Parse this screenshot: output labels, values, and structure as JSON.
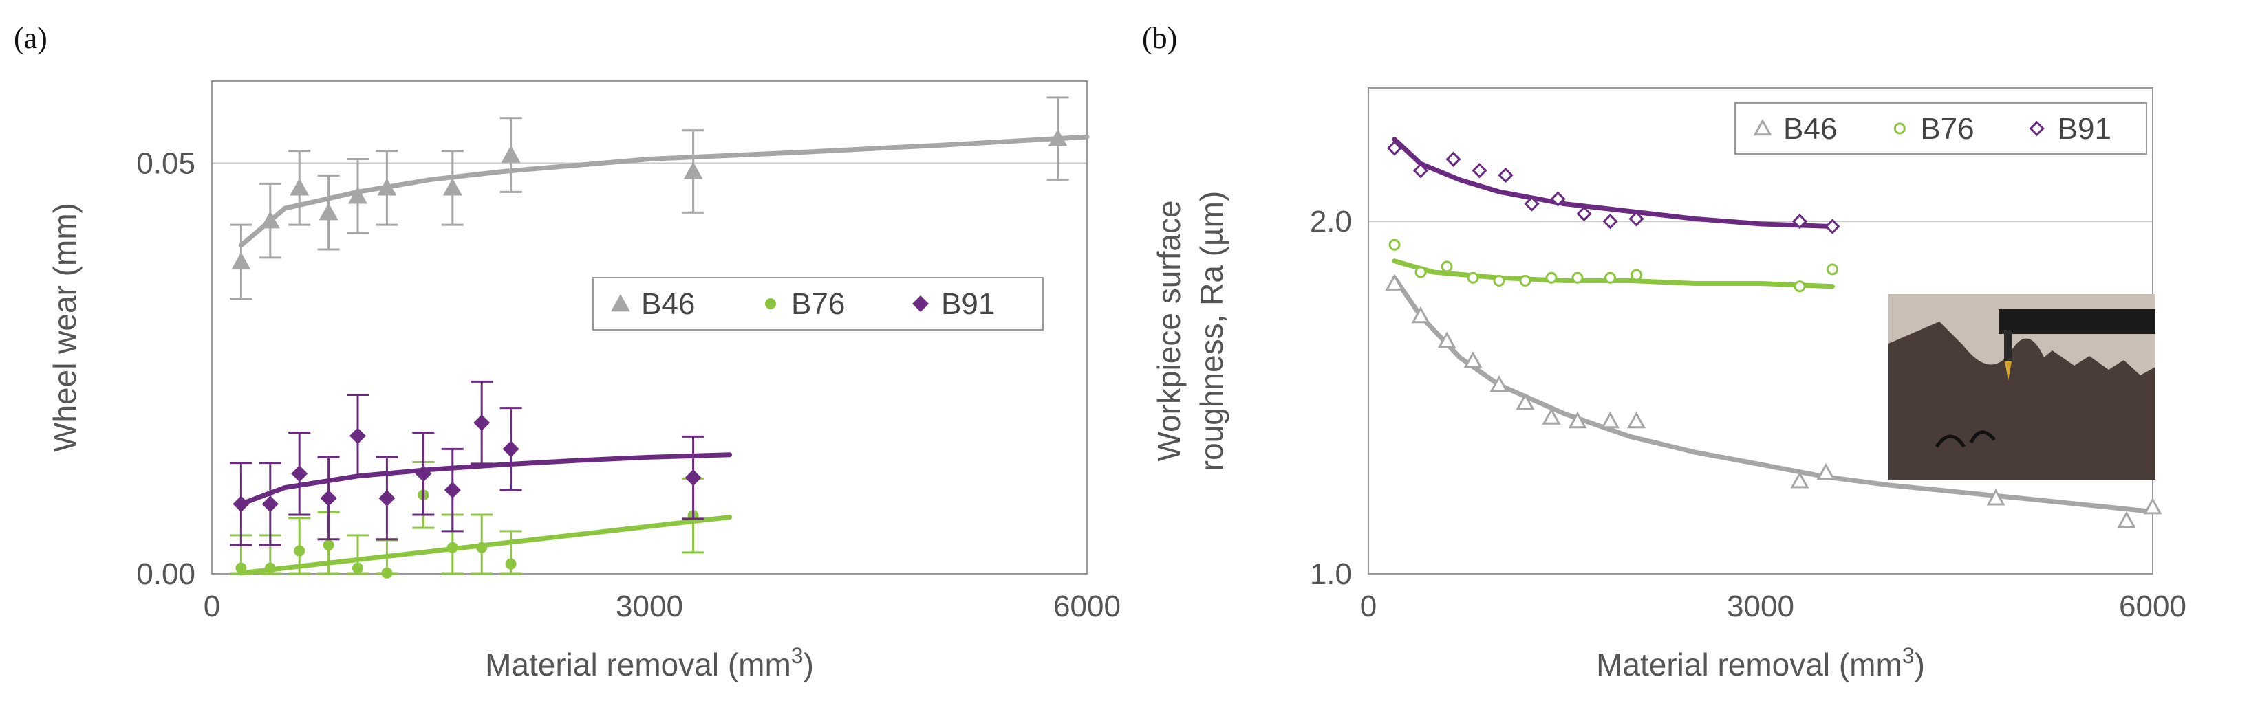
{
  "panels": {
    "a": {
      "label": "(a)"
    },
    "b": {
      "label": "(b)"
    }
  },
  "colors": {
    "B46": "#a6a6a6",
    "B76": "#8cc63f",
    "B91": "#6b2a82"
  },
  "chart_data": [
    {
      "id": "a",
      "type": "scatter",
      "title": "",
      "xlabel": "Material removal (mm",
      "xlabel_sup": "3",
      "xlabel_end": ")",
      "ylabel": "Wheel wear (mm)",
      "xlim": [
        0,
        6000
      ],
      "ylim": [
        0,
        0.06
      ],
      "xticks": [
        0,
        3000,
        6000
      ],
      "xtick_labels": [
        "0",
        "3000",
        "6000"
      ],
      "yticks": [
        0,
        0.05
      ],
      "ytick_labels": [
        "0.00",
        "0.05"
      ],
      "grid_y": [
        0.05
      ],
      "legend": {
        "placement": "center-right",
        "entries": [
          "B46",
          "B76",
          "B91"
        ]
      },
      "series": [
        {
          "name": "B46",
          "marker": "triangle-filled",
          "x": [
            200,
            400,
            600,
            800,
            1000,
            1200,
            1650,
            2050,
            3300,
            5800
          ],
          "y": [
            0.038,
            0.043,
            0.047,
            0.044,
            0.046,
            0.047,
            0.047,
            0.051,
            0.049,
            0.053
          ],
          "err": [
            0.0045,
            0.0045,
            0.0045,
            0.0045,
            0.0045,
            0.0045,
            0.0045,
            0.0045,
            0.005,
            0.005
          ],
          "fit": {
            "x": [
              200,
              500,
              1000,
              1500,
              2000,
              3000,
              4000,
              5000,
              6000
            ],
            "y": [
              0.04,
              0.0445,
              0.0465,
              0.048,
              0.049,
              0.0505,
              0.0513,
              0.0522,
              0.0532
            ]
          }
        },
        {
          "name": "B76",
          "marker": "circle-filled",
          "x": [
            200,
            400,
            600,
            800,
            1000,
            1200,
            1450,
            1650,
            1850,
            2050,
            3300
          ],
          "y": [
            0.0007,
            0.0007,
            0.0028,
            0.0035,
            0.0007,
            0.0001,
            0.0096,
            0.0032,
            0.0032,
            0.0012,
            0.0071
          ],
          "err": [
            0.004,
            0.004,
            0.004,
            0.004,
            0.004,
            0.004,
            0.004,
            0.004,
            0.004,
            0.004,
            0.0045
          ],
          "fit": {
            "x": [
              200,
              3550
            ],
            "y": [
              0.0001,
              0.0069
            ]
          }
        },
        {
          "name": "B91",
          "marker": "diamond-filled",
          "x": [
            200,
            400,
            600,
            800,
            1000,
            1200,
            1450,
            1650,
            1850,
            2050,
            3300
          ],
          "y": [
            0.0085,
            0.0085,
            0.0122,
            0.0092,
            0.0168,
            0.0092,
            0.0122,
            0.0102,
            0.0184,
            0.0152,
            0.0117
          ],
          "err": [
            0.005,
            0.005,
            0.005,
            0.005,
            0.005,
            0.005,
            0.005,
            0.005,
            0.005,
            0.005,
            0.005
          ],
          "fit": {
            "x": [
              200,
              500,
              1000,
              1500,
              2000,
              2500,
              3000,
              3550
            ],
            "y": [
              0.0085,
              0.0105,
              0.0119,
              0.0127,
              0.0133,
              0.0138,
              0.0142,
              0.0145
            ]
          }
        }
      ]
    },
    {
      "id": "b",
      "type": "scatter",
      "title": "",
      "xlabel": "Material removal (mm",
      "xlabel_sup": "3",
      "xlabel_end": ")",
      "ylabel_line1": "Workpiece surface",
      "ylabel_line2": "roughness, Ra (µm)",
      "yscale": "log",
      "xlim": [
        0,
        6000
      ],
      "ylim": [
        1.0,
        2.6
      ],
      "xticks": [
        0,
        3000,
        6000
      ],
      "xtick_labels": [
        "0",
        "3000",
        "6000"
      ],
      "yticks": [
        1.0,
        2.0
      ],
      "ytick_labels": [
        "1.0",
        "2.0"
      ],
      "grid_y": [
        2.0
      ],
      "legend": {
        "placement": "top-right",
        "entries": [
          "B46",
          "B76",
          "B91"
        ]
      },
      "inset": {
        "description": "photo of stylus profilometer tip on grooved workpiece"
      },
      "series": [
        {
          "name": "B46",
          "marker": "triangle-open",
          "x": [
            200,
            400,
            600,
            800,
            1000,
            1200,
            1400,
            1600,
            1850,
            2050,
            3300,
            3500,
            4800,
            5800,
            6000
          ],
          "y": [
            1.77,
            1.66,
            1.58,
            1.52,
            1.45,
            1.4,
            1.36,
            1.35,
            1.35,
            1.35,
            1.2,
            1.22,
            1.16,
            1.11,
            1.14
          ],
          "fit": {
            "x": [
              200,
              400,
              700,
              1000,
              1500,
              2000,
              2500,
              3000,
              3500,
              4000,
              5000,
              6000
            ],
            "y": [
              1.79,
              1.66,
              1.53,
              1.45,
              1.37,
              1.31,
              1.27,
              1.24,
              1.21,
              1.19,
              1.16,
              1.13
            ]
          }
        },
        {
          "name": "B76",
          "marker": "circle-open",
          "x": [
            200,
            400,
            600,
            800,
            1000,
            1200,
            1400,
            1600,
            1850,
            2050,
            3300,
            3550
          ],
          "y": [
            1.91,
            1.81,
            1.83,
            1.79,
            1.78,
            1.78,
            1.79,
            1.79,
            1.79,
            1.8,
            1.76,
            1.82
          ],
          "fit": {
            "x": [
              200,
              500,
              1000,
              1500,
              2000,
              2500,
              3000,
              3550
            ],
            "y": [
              1.85,
              1.81,
              1.79,
              1.78,
              1.78,
              1.77,
              1.77,
              1.76
            ]
          }
        },
        {
          "name": "B91",
          "marker": "diamond-open",
          "x": [
            200,
            400,
            650,
            850,
            1050,
            1250,
            1450,
            1650,
            1850,
            2050,
            3300,
            3550
          ],
          "y": [
            2.31,
            2.21,
            2.26,
            2.21,
            2.19,
            2.07,
            2.09,
            2.03,
            2.0,
            2.01,
            2.0,
            1.98
          ],
          "fit": {
            "x": [
              200,
              400,
              700,
              1000,
              1500,
              2000,
              2500,
              3000,
              3550
            ],
            "y": [
              2.35,
              2.24,
              2.17,
              2.12,
              2.07,
              2.04,
              2.01,
              1.99,
              1.98
            ]
          }
        }
      ]
    }
  ]
}
